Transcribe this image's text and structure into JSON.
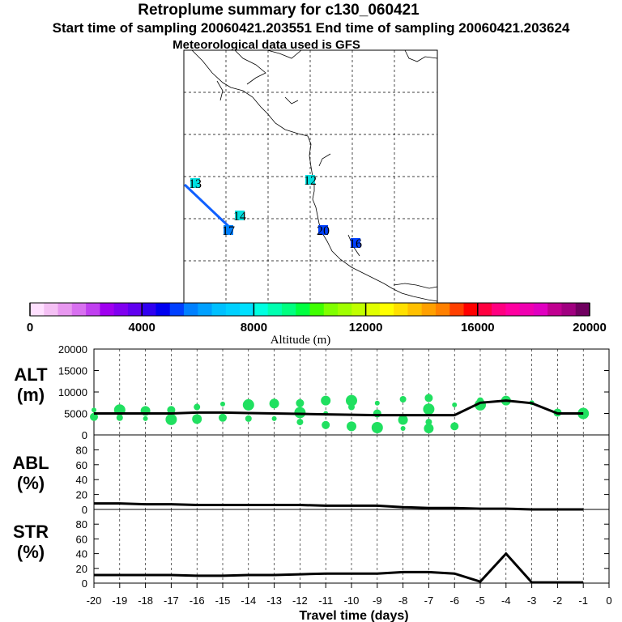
{
  "titles": {
    "main": "Retroplume summary for c130_060421",
    "sampling": "Start time of sampling 20060421.203551     End time of sampling 20060421.203624",
    "met": "Meteorological data used is GFS"
  },
  "map": {
    "markers": [
      {
        "label": "13",
        "color": "#00e0e0"
      },
      {
        "label": "12",
        "color": "#00e0e0"
      },
      {
        "label": "14",
        "color": "#00e0e0"
      },
      {
        "label": "17",
        "color": "#0080ff"
      },
      {
        "label": "20",
        "color": "#0040ff"
      },
      {
        "label": "16",
        "color": "#0040ff"
      }
    ]
  },
  "colorbar": {
    "label": "Altitude (m)",
    "ticks": [
      "0",
      "4000",
      "8000",
      "12000",
      "16000",
      "20000"
    ],
    "colors": [
      "#ffe0ff",
      "#f4c0f4",
      "#e898f0",
      "#d870f0",
      "#c040f0",
      "#a000f0",
      "#8000f0",
      "#6000f0",
      "#3000f0",
      "#0000f0",
      "#0040ff",
      "#0080ff",
      "#00a0ff",
      "#00c0ff",
      "#00d0ff",
      "#00e0ff",
      "#00ffe0",
      "#00ffb0",
      "#00ff80",
      "#00ff40",
      "#40ff00",
      "#80ff00",
      "#a0ff00",
      "#c0ff00",
      "#e0ff00",
      "#ffff00",
      "#ffe000",
      "#ffc000",
      "#ffa000",
      "#ff8000",
      "#ff4000",
      "#ff0000",
      "#ff0040",
      "#ff0080",
      "#ff00a0",
      "#f000b0",
      "#e000c0",
      "#c00090",
      "#a00080",
      "#700060"
    ]
  },
  "chart_data": {
    "type": "line",
    "xlabel": "Travel time (days)",
    "x_ticks": [
      "-20",
      "-19",
      "-18",
      "-17",
      "-16",
      "-15",
      "-14",
      "-13",
      "-12",
      "-11",
      "-10",
      "-9",
      "-8",
      "-7",
      "-6",
      "-5",
      "-4",
      "-3",
      "-2",
      "-1",
      "0"
    ],
    "xlim": [
      -20,
      0
    ],
    "panels": [
      {
        "name": "ALT",
        "label_line1": "ALT",
        "label_line2": "(m)",
        "ylim": [
          0,
          20000
        ],
        "y_ticks": [
          "0",
          "5000",
          "10000",
          "15000",
          "20000"
        ],
        "series": [
          {
            "name": "mean altitude",
            "x": [
              -20,
              -19,
              -18,
              -17,
              -16,
              -15,
              -14,
              -13,
              -12,
              -11,
              -10,
              -9,
              -8,
              -7,
              -6,
              -5,
              -4,
              -3,
              -2,
              -1
            ],
            "y": [
              5000,
              5000,
              5000,
              5000,
              5200,
              5200,
              5100,
              5000,
              4900,
              4800,
              4700,
              4600,
              4600,
              4600,
              4600,
              7500,
              8000,
              7400,
              5000,
              5000
            ]
          }
        ],
        "scatter": {
          "name": "particle altitudes",
          "color": "#20e060",
          "points": [
            [
              -20,
              5800
            ],
            [
              -20,
              4200
            ],
            [
              -19,
              5800
            ],
            [
              -19,
              4000
            ],
            [
              -18,
              5600
            ],
            [
              -18,
              3800
            ],
            [
              -17,
              5800
            ],
            [
              -17,
              3600
            ],
            [
              -16,
              6500
            ],
            [
              -16,
              3700
            ],
            [
              -15,
              7200
            ],
            [
              -15,
              4000
            ],
            [
              -14,
              7000
            ],
            [
              -14,
              3800
            ],
            [
              -13,
              7300
            ],
            [
              -13,
              3800
            ],
            [
              -12,
              7400
            ],
            [
              -12,
              5200
            ],
            [
              -12,
              3000
            ],
            [
              -11,
              8000
            ],
            [
              -11,
              5000
            ],
            [
              -11,
              2300
            ],
            [
              -10,
              8000
            ],
            [
              -10,
              6500
            ],
            [
              -10,
              2000
            ],
            [
              -9,
              7400
            ],
            [
              -9,
              5000
            ],
            [
              -9,
              1700
            ],
            [
              -8,
              8300
            ],
            [
              -8,
              3500
            ],
            [
              -8,
              1500
            ],
            [
              -7,
              8600
            ],
            [
              -7,
              6000
            ],
            [
              -7,
              3000
            ],
            [
              -7,
              1500
            ],
            [
              -6,
              7000
            ],
            [
              -6,
              2000
            ],
            [
              -5,
              7000
            ],
            [
              -5,
              8000
            ],
            [
              -4,
              8000
            ],
            [
              -3,
              7500
            ],
            [
              -2,
              5200
            ],
            [
              -1,
              5000
            ]
          ]
        }
      },
      {
        "name": "ABL",
        "label_line1": "ABL",
        "label_line2": "(%)",
        "ylim": [
          0,
          100
        ],
        "y_ticks": [
          "0",
          "20",
          "40",
          "60",
          "80"
        ],
        "series": [
          {
            "name": "ABL fraction",
            "x": [
              -20,
              -19,
              -18,
              -17,
              -16,
              -15,
              -14,
              -13,
              -12,
              -11,
              -10,
              -9,
              -8,
              -7,
              -6,
              -5,
              -4,
              -3,
              -2,
              -1
            ],
            "y": [
              8,
              8,
              7,
              7,
              6,
              6,
              6,
              6,
              6,
              5,
              5,
              5,
              3,
              2,
              2,
              1,
              1,
              0,
              0,
              0
            ]
          }
        ]
      },
      {
        "name": "STR",
        "label_line1": "STR",
        "label_line2": "(%)",
        "ylim": [
          0,
          100
        ],
        "y_ticks": [
          "0",
          "20",
          "40",
          "60",
          "80"
        ],
        "series": [
          {
            "name": "STR fraction",
            "x": [
              -20,
              -19,
              -18,
              -17,
              -16,
              -15,
              -14,
              -13,
              -12,
              -11,
              -10,
              -9,
              -8,
              -7,
              -6,
              -5,
              -4,
              -3,
              -2,
              -1
            ],
            "y": [
              11,
              11,
              11,
              11,
              10,
              10,
              11,
              11,
              12,
              13,
              13,
              13,
              15,
              15,
              13,
              2,
              40,
              1,
              1,
              1
            ]
          }
        ]
      }
    ]
  }
}
